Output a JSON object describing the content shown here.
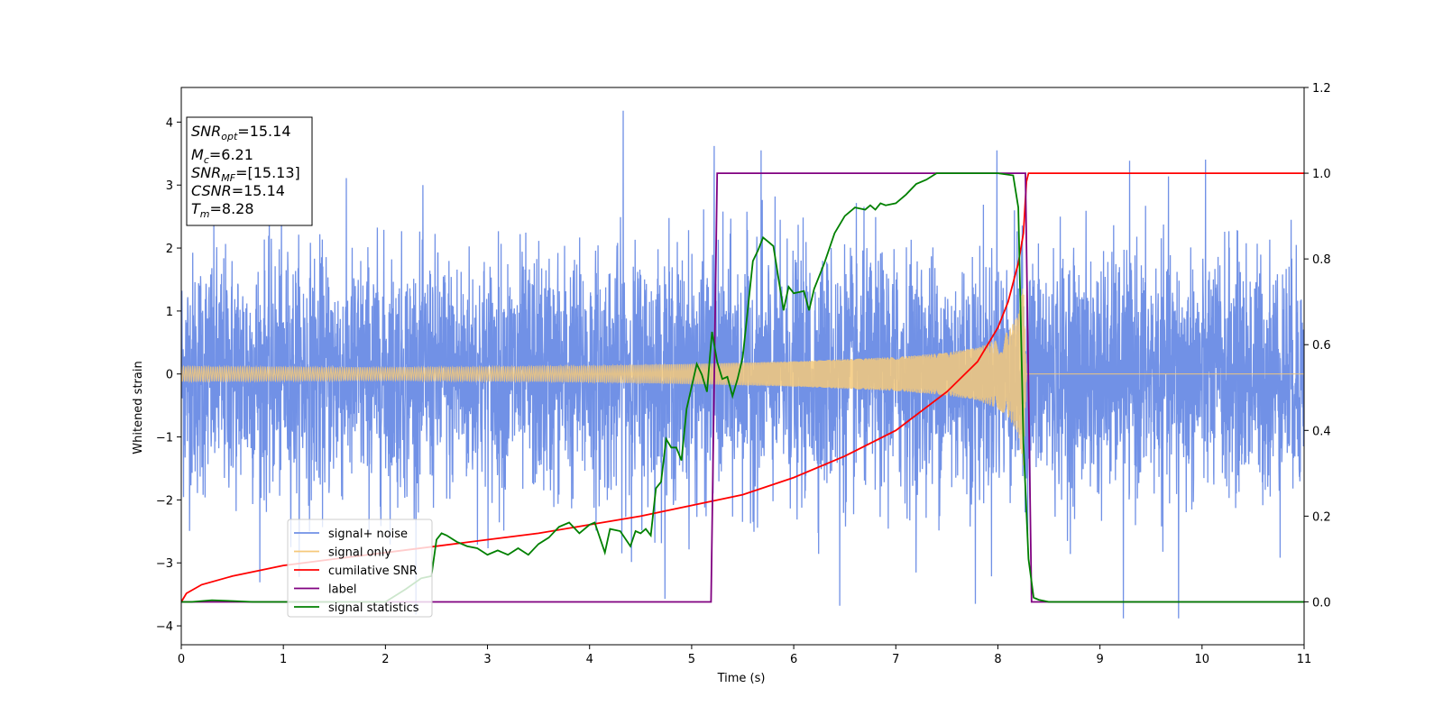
{
  "chart_data": {
    "type": "line",
    "xlabel": "Time (s)",
    "ylabel_left": "Whitened strain",
    "ylabel_right": "",
    "xlim": [
      0,
      11
    ],
    "ylim_left": [
      -4.3,
      4.55
    ],
    "ylim_right": [
      -0.1,
      1.2
    ],
    "x_ticks": [
      "0",
      "1",
      "2",
      "3",
      "4",
      "5",
      "6",
      "7",
      "8",
      "9",
      "10",
      "11"
    ],
    "y_left_ticks": [
      "4",
      "3",
      "2",
      "1",
      "0",
      "−1",
      "−2",
      "−3",
      "−4"
    ],
    "y_right_ticks": [
      "1.2",
      "1.0",
      "0.8",
      "0.6",
      "0.4",
      "0.2",
      "0.0"
    ],
    "grid": false,
    "legend_position": "lower-left",
    "info_box": {
      "snr_opt": {
        "base": "SNR",
        "sub": "opt",
        "value": "=15.14"
      },
      "mc": {
        "base": "M",
        "sub": "c",
        "value": "=6.21"
      },
      "snr_mf": {
        "base": "SNR",
        "sub": "MF",
        "value": "=[15.13]"
      },
      "csnr": {
        "base": "CSNR",
        "value": "=15.14"
      },
      "tm": {
        "base": "T",
        "sub": "m",
        "value": "=8.28"
      }
    },
    "series": [
      {
        "name": "signal+ noise",
        "axis": "left",
        "color": "#7191e6",
        "description_values": {
          "noise_std": 1.0,
          "t_start": 0,
          "t_end": 11
        },
        "peaks": [
          [
            4.33,
            4.18
          ],
          [
            5.22,
            3.62
          ],
          [
            5.68,
            3.55
          ],
          [
            7.99,
            3.55
          ],
          [
            6.45,
            -3.68
          ],
          [
            9.23,
            -3.88
          ],
          [
            9.77,
            -3.88
          ],
          [
            7.78,
            -3.65
          ]
        ]
      },
      {
        "name": "signal only",
        "axis": "left",
        "color": "#f5c97a",
        "envelope": [
          [
            0,
            0.12
          ],
          [
            2,
            0.1
          ],
          [
            4,
            0.13
          ],
          [
            5,
            0.16
          ],
          [
            6,
            0.2
          ],
          [
            7,
            0.27
          ],
          [
            7.5,
            0.34
          ],
          [
            7.8,
            0.42
          ],
          [
            8.0,
            0.55
          ],
          [
            8.1,
            0.68
          ],
          [
            8.2,
            0.95
          ],
          [
            8.25,
            1.5
          ],
          [
            8.28,
            0
          ]
        ]
      },
      {
        "name": "cumilative SNR",
        "axis": "right",
        "color": "#ff0000",
        "x": [
          0,
          0.05,
          0.2,
          0.5,
          1,
          1.5,
          2,
          2.5,
          3,
          3.5,
          4,
          4.5,
          5,
          5.5,
          6,
          6.5,
          7,
          7.5,
          7.8,
          8.0,
          8.1,
          8.2,
          8.25,
          8.28,
          8.3,
          11
        ],
        "y": [
          0.0,
          0.02,
          0.04,
          0.06,
          0.085,
          0.1,
          0.115,
          0.13,
          0.145,
          0.16,
          0.18,
          0.2,
          0.225,
          0.25,
          0.29,
          0.34,
          0.4,
          0.49,
          0.56,
          0.64,
          0.7,
          0.79,
          0.86,
          0.98,
          1.0,
          1.0
        ]
      },
      {
        "name": "label",
        "axis": "right",
        "color": "#800080",
        "x": [
          0,
          5.19,
          5.25,
          8.27,
          8.33,
          11
        ],
        "y": [
          0,
          0,
          1,
          1,
          0,
          0
        ]
      },
      {
        "name": "signal statistics",
        "axis": "right",
        "color": "#008000",
        "x": [
          0,
          0.1,
          0.3,
          0.5,
          0.7,
          0.9,
          1.1,
          1.5,
          1.8,
          2.0,
          2.2,
          2.35,
          2.45,
          2.5,
          2.55,
          2.6,
          2.7,
          2.8,
          2.9,
          3.0,
          3.1,
          3.15,
          3.2,
          3.3,
          3.4,
          3.5,
          3.6,
          3.7,
          3.8,
          3.9,
          4.0,
          4.05,
          4.15,
          4.2,
          4.3,
          4.4,
          4.45,
          4.5,
          4.55,
          4.6,
          4.65,
          4.7,
          4.75,
          4.8,
          4.85,
          4.9,
          4.95,
          5.05,
          5.1,
          5.15,
          5.2,
          5.25,
          5.3,
          5.35,
          5.4,
          5.45,
          5.5,
          5.6,
          5.65,
          5.7,
          5.75,
          5.8,
          5.9,
          5.95,
          6.0,
          6.1,
          6.15,
          6.2,
          6.3,
          6.4,
          6.5,
          6.6,
          6.7,
          6.75,
          6.8,
          6.85,
          6.9,
          7.0,
          7.1,
          7.2,
          7.3,
          7.4,
          7.6,
          7.8,
          8.0,
          8.15,
          8.2,
          8.25,
          8.3,
          8.35,
          8.4,
          8.5,
          11
        ],
        "y": [
          0,
          0,
          0.004,
          0.002,
          0,
          0,
          0,
          0,
          0,
          0.0,
          0.03,
          0.055,
          0.06,
          0.145,
          0.16,
          0.155,
          0.14,
          0.13,
          0.125,
          0.11,
          0.12,
          0.115,
          0.11,
          0.125,
          0.11,
          0.135,
          0.15,
          0.175,
          0.185,
          0.16,
          0.18,
          0.185,
          0.115,
          0.17,
          0.165,
          0.13,
          0.165,
          0.16,
          0.17,
          0.155,
          0.265,
          0.28,
          0.38,
          0.36,
          0.36,
          0.33,
          0.45,
          0.555,
          0.53,
          0.49,
          0.63,
          0.56,
          0.52,
          0.525,
          0.48,
          0.52,
          0.57,
          0.795,
          0.82,
          0.85,
          0.84,
          0.83,
          0.68,
          0.735,
          0.72,
          0.725,
          0.68,
          0.73,
          0.79,
          0.86,
          0.9,
          0.92,
          0.915,
          0.925,
          0.915,
          0.93,
          0.925,
          0.93,
          0.95,
          0.975,
          0.985,
          1.0,
          1.0,
          1.0,
          1.0,
          0.995,
          0.92,
          0.37,
          0.1,
          0.01,
          0.005,
          0.0,
          0.0
        ]
      }
    ]
  }
}
